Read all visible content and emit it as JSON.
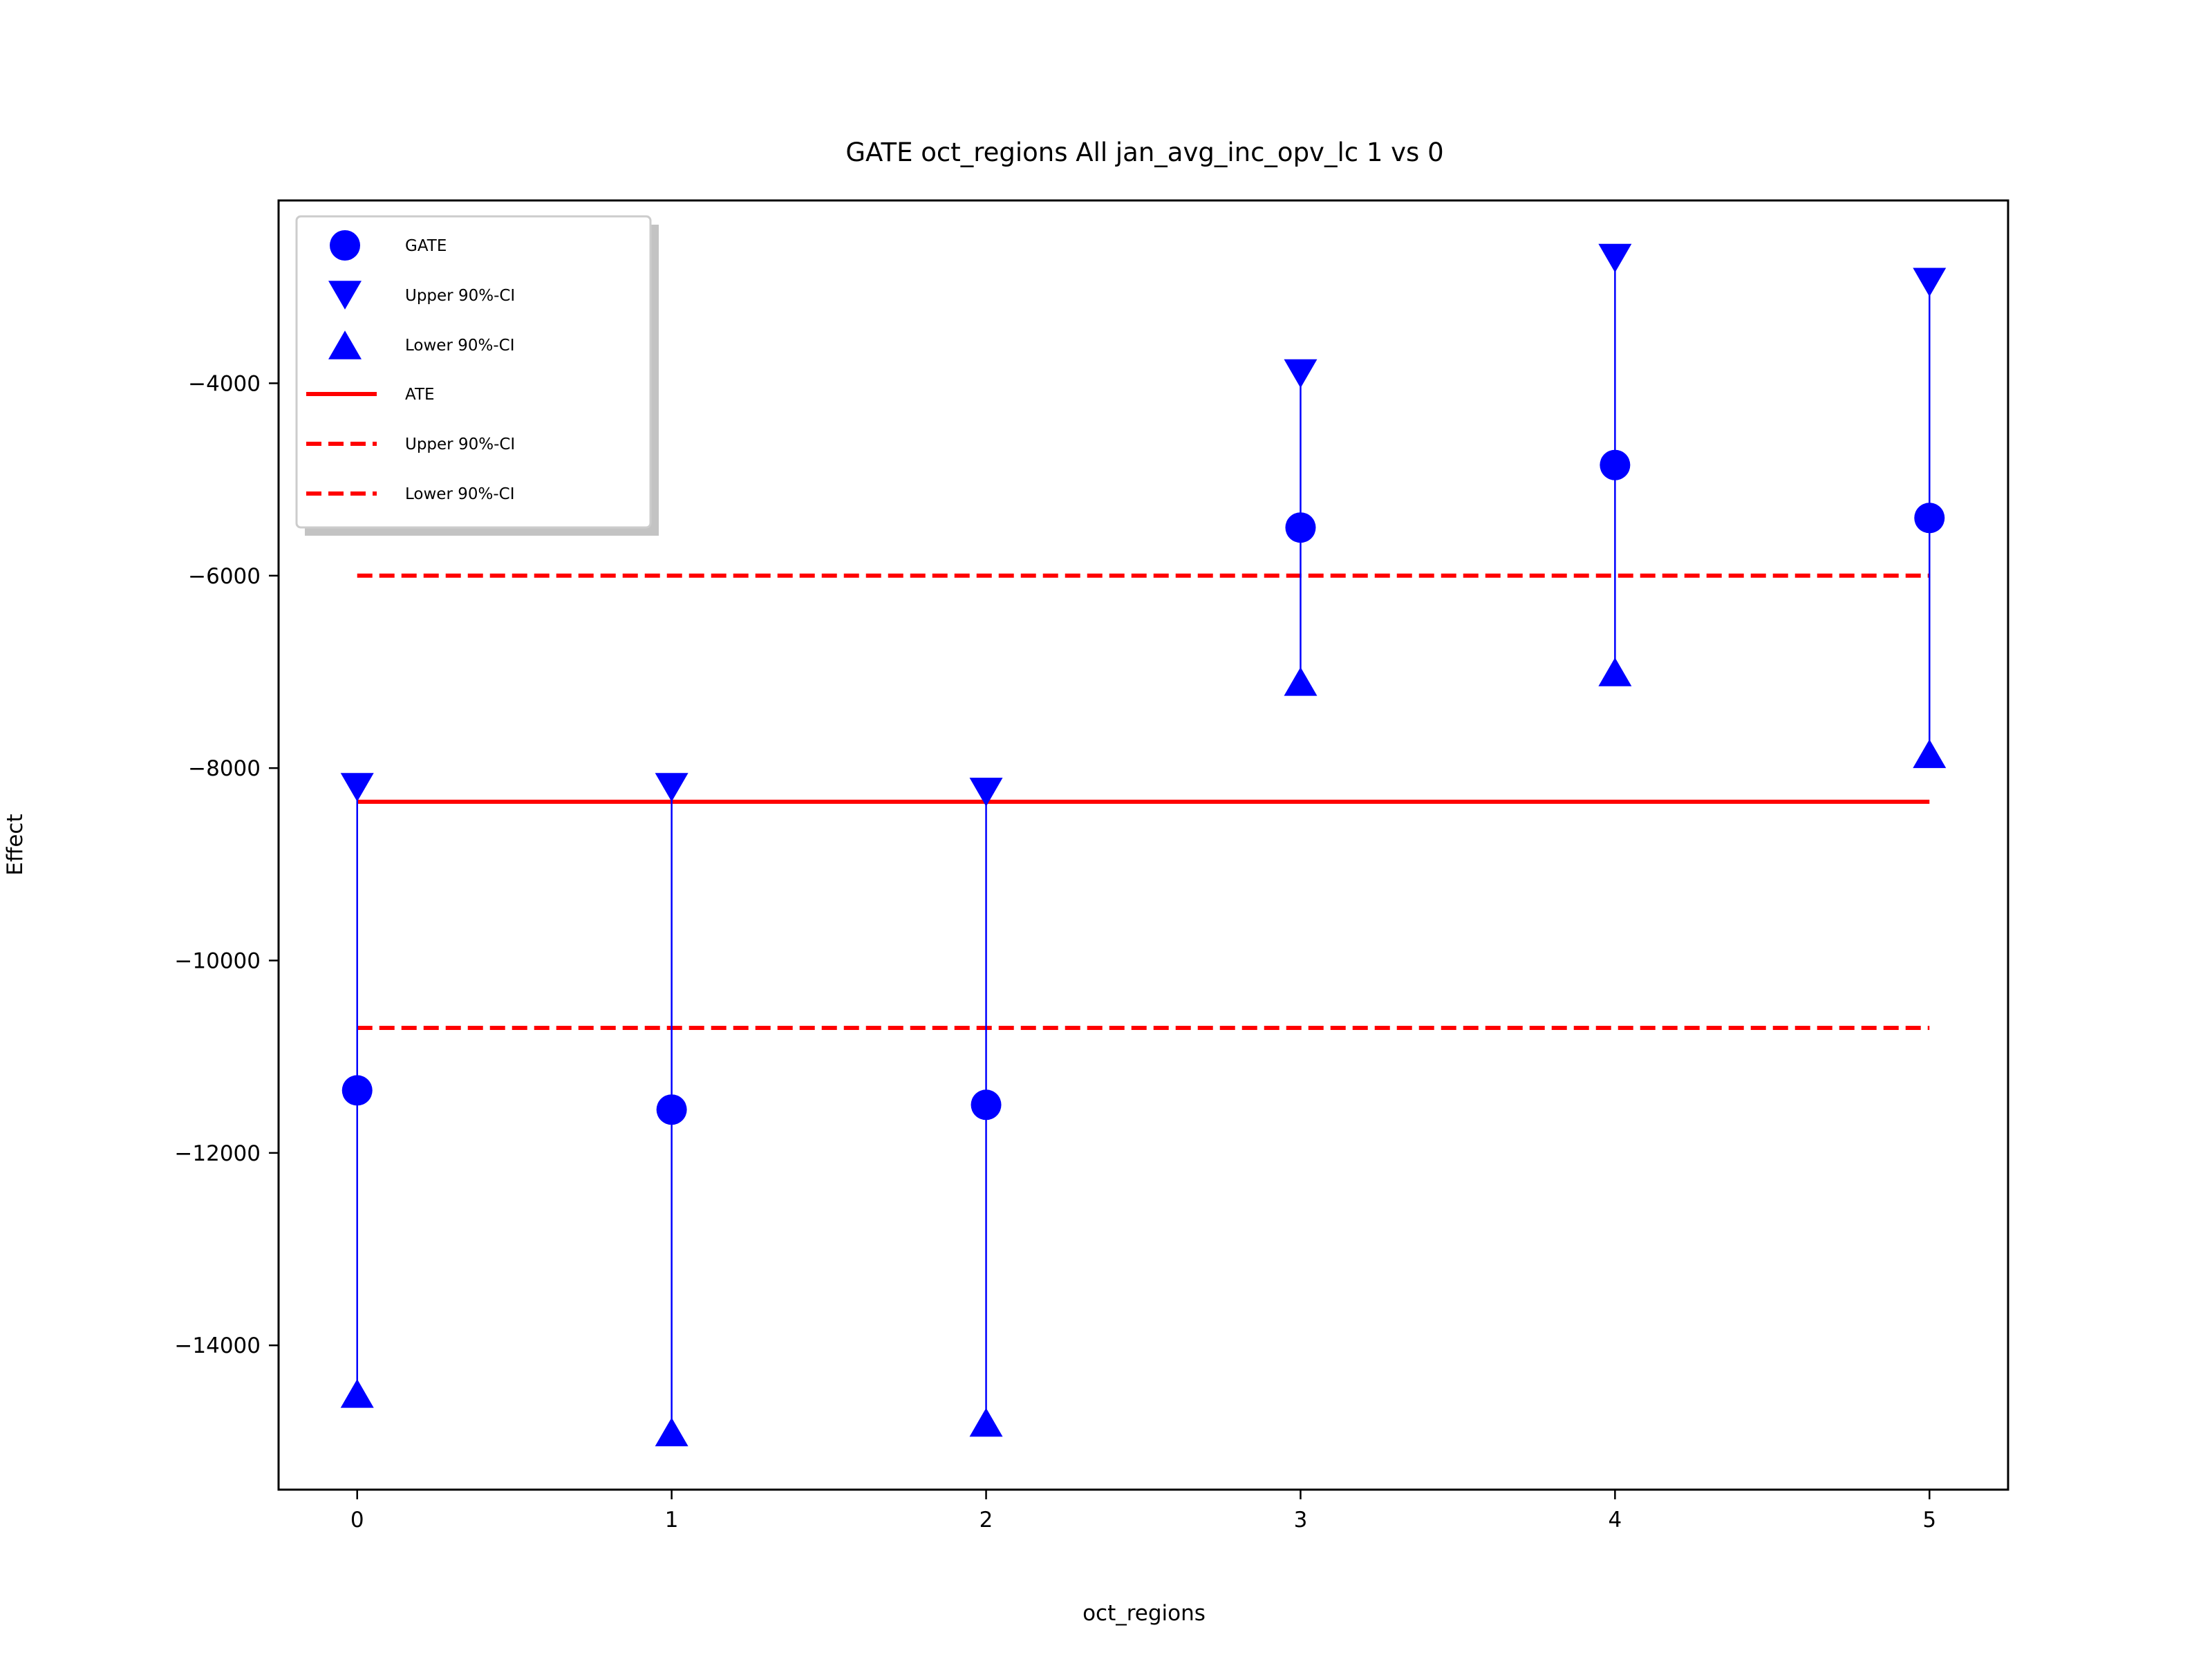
{
  "chart_data": {
    "type": "scatter",
    "title": "GATE oct_regions All jan_avg_inc_opv_lc  1 vs 0",
    "xlabel": "oct_regions",
    "ylabel": "Effect",
    "xlim": [
      -0.25,
      5.25
    ],
    "ylim": [
      -15500,
      -2100
    ],
    "x_ticks": [
      0,
      1,
      2,
      3,
      4,
      5
    ],
    "y_ticks": [
      -14000,
      -12000,
      -10000,
      -8000,
      -6000,
      -4000
    ],
    "x_tick_labels": [
      "0",
      "1",
      "2",
      "3",
      "4",
      "5"
    ],
    "y_tick_labels": [
      "−14000",
      "−12000",
      "−10000",
      "−8000",
      "−6000",
      "−4000"
    ],
    "legend_position": "upper-left",
    "colors": {
      "gate": "#0000ff",
      "ate": "#ff0000"
    },
    "series": [
      {
        "name": "GATE",
        "marker": "circle",
        "color": "#0000ff",
        "x": [
          0,
          1,
          2,
          3,
          4,
          5
        ],
        "values": [
          -11350,
          -11550,
          -11500,
          -5500,
          -4850,
          -5400
        ]
      },
      {
        "name": "Upper 90%-CI",
        "marker": "triangle-down",
        "color": "#0000ff",
        "x": [
          0,
          1,
          2,
          3,
          4,
          5
        ],
        "values": [
          -8200,
          -8200,
          -8250,
          -3900,
          -2700,
          -2950
        ]
      },
      {
        "name": "Lower 90%-CI",
        "marker": "triangle-up",
        "color": "#0000ff",
        "x": [
          0,
          1,
          2,
          3,
          4,
          5
        ],
        "values": [
          -14500,
          -14900,
          -14800,
          -7100,
          -7000,
          -7850
        ]
      },
      {
        "name": "ATE",
        "line": "solid",
        "color": "#ff0000",
        "x": [
          0,
          5
        ],
        "values": [
          -8350,
          -8350
        ]
      },
      {
        "name": "Upper 90%-CI",
        "line": "dashed",
        "color": "#ff0000",
        "x": [
          0,
          5
        ],
        "values": [
          -6000,
          -6000
        ]
      },
      {
        "name": "Lower 90%-CI",
        "line": "dashed",
        "color": "#ff0000",
        "x": [
          0,
          5
        ],
        "values": [
          -10700,
          -10700
        ]
      }
    ]
  }
}
